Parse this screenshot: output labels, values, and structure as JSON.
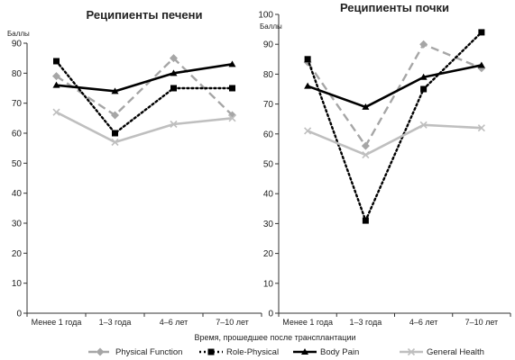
{
  "chart_data": [
    {
      "type": "line",
      "title": "Реципиенты печени",
      "ylabel": "Баллы",
      "xlabel": "",
      "categories": [
        "Менее 1 года",
        "1–3 года",
        "4–6 лет",
        "7–10 лет"
      ],
      "ylim": [
        0,
        90
      ],
      "yticks": [
        0,
        10,
        20,
        30,
        40,
        50,
        60,
        70,
        80,
        90
      ],
      "series": [
        {
          "name": "Physical Function",
          "values": [
            79,
            66,
            85,
            66
          ]
        },
        {
          "name": "Role-Physical",
          "values": [
            84,
            60,
            75,
            75
          ]
        },
        {
          "name": "Body Pain",
          "values": [
            76,
            74,
            80,
            83
          ]
        },
        {
          "name": "General Health",
          "values": [
            67,
            57,
            63,
            65
          ]
        }
      ]
    },
    {
      "type": "line",
      "title": "Реципиенты почки",
      "ylabel": "Баллы",
      "xlabel": "",
      "categories": [
        "Менее 1 года",
        "1–3 года",
        "4–6 лет",
        "7–10 лет"
      ],
      "ylim": [
        0,
        100
      ],
      "yticks": [
        0,
        10,
        20,
        30,
        40,
        50,
        60,
        70,
        80,
        90,
        100
      ],
      "series": [
        {
          "name": "Physical Function",
          "values": [
            84,
            56,
            90,
            82
          ]
        },
        {
          "name": "Role-Physical",
          "values": [
            85,
            31,
            75,
            94
          ]
        },
        {
          "name": "Body Pain",
          "values": [
            76,
            69,
            79,
            83
          ]
        },
        {
          "name": "General Health",
          "values": [
            61,
            53,
            63,
            62
          ]
        }
      ]
    }
  ],
  "shared_xlabel": "Время, прошедшее после трансплантации",
  "legend": {
    "position": "bottom",
    "items": [
      "Physical Function",
      "Role-Physical",
      "Body Pain",
      "General Health"
    ]
  },
  "series_style": {
    "Physical Function": {
      "color": "#a6a6a6",
      "marker": "diamond",
      "dash": "dash"
    },
    "Role-Physical": {
      "color": "#000000",
      "marker": "square",
      "dash": "dot"
    },
    "Body Pain": {
      "color": "#000000",
      "marker": "triangle",
      "dash": "solid"
    },
    "General Health": {
      "color": "#bfbfbf",
      "marker": "x",
      "dash": "solid"
    }
  }
}
